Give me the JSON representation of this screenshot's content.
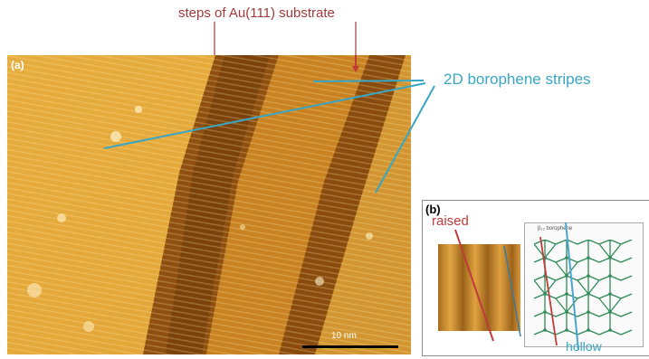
{
  "figure": {
    "top_label": "steps of Au(111) substrate",
    "stripes_label": "2D borophene stripes",
    "panel_a": {
      "letter": "(a)",
      "scale_bar": "10 nm"
    },
    "panel_b": {
      "letter": "(b)",
      "raised_label": "raised",
      "hollow_label": "hollow",
      "model_title": "β₁₂ borophene"
    }
  },
  "colors": {
    "red_label": "#a33a3a",
    "blue_label": "#3aa6c3"
  }
}
